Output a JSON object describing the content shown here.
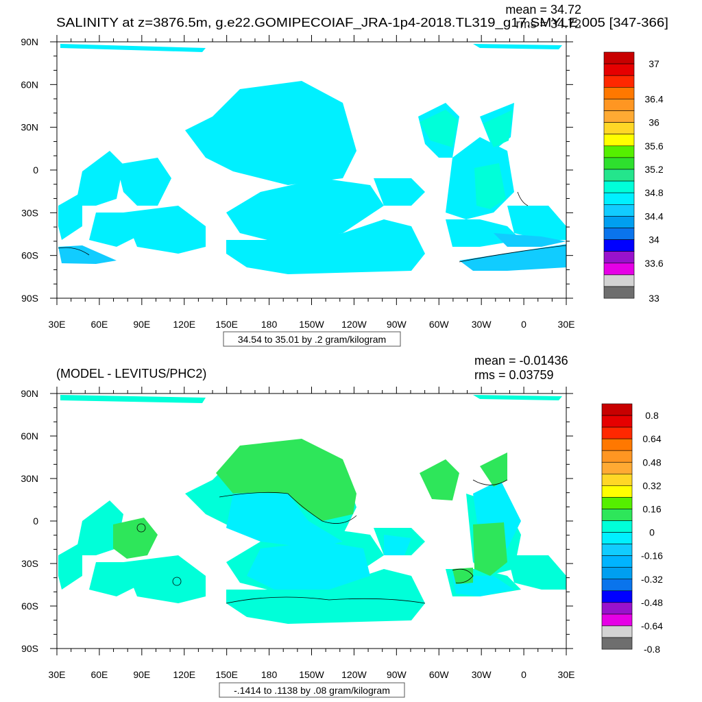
{
  "panels": [
    {
      "title": "SALINITY at z=3876.5m, g.e22.GOMIPECOIAF_JRA-1p4-2018.TL319_g17.SMYLE.005 [347-366]",
      "mean_text": "mean = 34.72",
      "rms_text": "rms = 34.72",
      "range_text": "34.54 to 35.01 by .2 gram/kilogram",
      "colorbar_labels": [
        "37",
        "36.4",
        "36",
        "35.6",
        "35.2",
        "34.8",
        "34.4",
        "34",
        "33.6",
        "33"
      ]
    },
    {
      "title": "(MODEL - LEVITUS/PHC2)",
      "mean_text": "mean = -0.01436",
      "rms_text": "rms = 0.03759",
      "range_text": "-.1414 to .1138 by .08 gram/kilogram",
      "colorbar_labels": [
        "0.8",
        "0.64",
        "0.48",
        "0.32",
        "0.16",
        "0",
        "-0.16",
        "-0.32",
        "-0.48",
        "-0.64",
        "-0.8"
      ]
    }
  ],
  "axes": {
    "lon_labels": [
      "30E",
      "60E",
      "90E",
      "120E",
      "150E",
      "180",
      "150W",
      "120W",
      "90W",
      "60W",
      "30W",
      "0",
      "30E"
    ],
    "lat_labels": [
      "90N",
      "60N",
      "30N",
      "0",
      "30S",
      "60S",
      "90S"
    ]
  },
  "chart_data": [
    {
      "type": "heatmap",
      "title": "SALINITY at z=3876.5m, g.e22.GOMIPECOIAF_JRA-1p4-2018.TL319_g17.SMYLE.005 [347-366]",
      "units": "gram/kilogram",
      "x_range": [
        30,
        390
      ],
      "y_range": [
        -90,
        90
      ],
      "mean": 34.72,
      "rms": 34.72,
      "field_min": 34.54,
      "field_max": 35.01,
      "contour_interval": 0.2,
      "levels": [
        33,
        33.2,
        33.4,
        33.6,
        33.8,
        34,
        34.2,
        34.4,
        34.6,
        34.8,
        35,
        35.2,
        35.4,
        35.6,
        35.8,
        36,
        36.2,
        36.4,
        36.6,
        36.8,
        37
      ],
      "colors": [
        "#6e6e6e",
        "#d3d3d3",
        "#e600e6",
        "#9912cc",
        "#0000ff",
        "#0a74ec",
        "#009ff0",
        "#11ccff",
        "#00f0ff",
        "#00ffd9",
        "#24e58c",
        "#2ee02e",
        "#55ef00",
        "#ffff00",
        "#ffd726",
        "#ffaa33",
        "#ff9622",
        "#ff7800",
        "#ff2800",
        "#e60000",
        "#c80000"
      ],
      "grid": false
    },
    {
      "type": "heatmap",
      "title": "(MODEL - LEVITUS/PHC2)",
      "units": "gram/kilogram",
      "x_range": [
        30,
        390
      ],
      "y_range": [
        -90,
        90
      ],
      "mean": -0.01436,
      "rms": 0.03759,
      "field_min": -0.1414,
      "field_max": 0.1138,
      "contour_interval": 0.08,
      "levels": [
        -0.8,
        -0.72,
        -0.64,
        -0.56,
        -0.48,
        -0.4,
        -0.32,
        -0.24,
        -0.16,
        -0.08,
        0,
        0.08,
        0.16,
        0.24,
        0.32,
        0.4,
        0.48,
        0.56,
        0.64,
        0.72,
        0.8
      ],
      "colors": [
        "#6e6e6e",
        "#d3d3d3",
        "#e600e6",
        "#9912cc",
        "#0000ff",
        "#0a74ec",
        "#009ff0",
        "#00b4ff",
        "#11ccff",
        "#00f0ff",
        "#00ffd9",
        "#2ee65a",
        "#55ef00",
        "#ffff00",
        "#ffd726",
        "#ffaa33",
        "#ff9622",
        "#ff7800",
        "#ff2800",
        "#e60000",
        "#c80000"
      ],
      "grid": false
    }
  ]
}
